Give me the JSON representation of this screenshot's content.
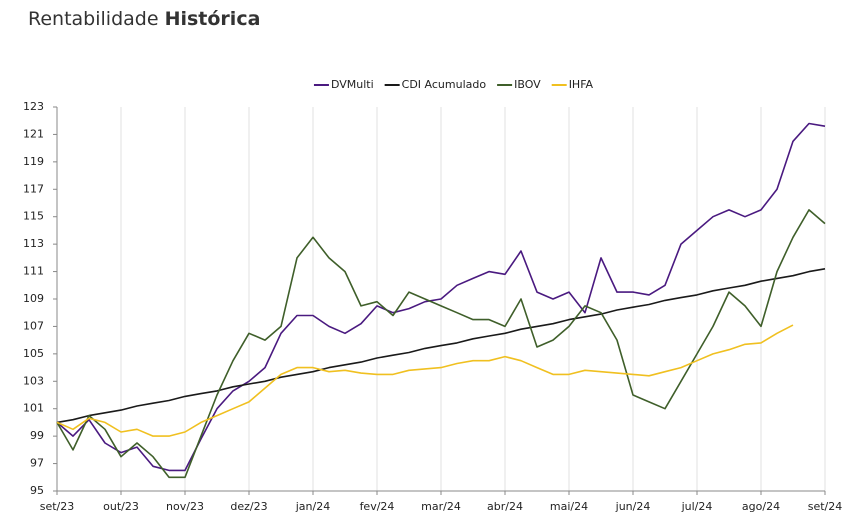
{
  "chart_data": {
    "type": "line",
    "title": "Rentabilidade",
    "title_emphasis": "Histórica",
    "categories": [
      "set/23",
      null,
      null,
      null,
      "out/23",
      null,
      null,
      null,
      "nov/23",
      null,
      null,
      null,
      "dez/23",
      null,
      null,
      null,
      "jan/24",
      null,
      null,
      null,
      "fev/24",
      null,
      null,
      null,
      "mar/24",
      null,
      null,
      null,
      "abr/24",
      null,
      null,
      null,
      "mai/24",
      null,
      null,
      null,
      "jun/24",
      null,
      null,
      null,
      "jul/24",
      null,
      null,
      null,
      "ago/24",
      null,
      null,
      null,
      "set/24"
    ],
    "series": [
      {
        "name": "DVMulti",
        "color": "#4a1a80",
        "values": [
          100,
          99.0,
          100.2,
          98.5,
          97.8,
          98.2,
          96.8,
          96.5,
          96.5,
          98.8,
          101.0,
          102.3,
          103.0,
          104.0,
          106.5,
          107.8,
          107.8,
          107.0,
          106.5,
          107.2,
          108.5,
          108.0,
          108.3,
          108.8,
          109.0,
          110.0,
          110.5,
          111.0,
          110.8,
          112.5,
          109.5,
          109.0,
          109.5,
          108.0,
          112.0,
          109.5,
          109.5,
          109.3,
          110.0,
          113.0,
          114.0,
          115.0,
          115.5,
          115.0,
          115.5,
          117.0,
          120.5,
          121.8,
          121.6
        ]
      },
      {
        "name": "CDI Acumulado",
        "color": "#1a1a1a",
        "values": [
          100,
          100.2,
          100.5,
          100.7,
          100.9,
          101.2,
          101.4,
          101.6,
          101.9,
          102.1,
          102.3,
          102.6,
          102.8,
          103.0,
          103.3,
          103.5,
          103.7,
          104.0,
          104.2,
          104.4,
          104.7,
          104.9,
          105.1,
          105.4,
          105.6,
          105.8,
          106.1,
          106.3,
          106.5,
          106.8,
          107.0,
          107.2,
          107.5,
          107.7,
          107.9,
          108.2,
          108.4,
          108.6,
          108.9,
          109.1,
          109.3,
          109.6,
          109.8,
          110.0,
          110.3,
          110.5,
          110.7,
          111.0,
          111.2
        ]
      },
      {
        "name": "IBOV",
        "color": "#3f5f2a",
        "values": [
          100,
          98.0,
          100.5,
          99.5,
          97.5,
          98.5,
          97.5,
          96.0,
          96.0,
          99.0,
          102.0,
          104.5,
          106.5,
          106.0,
          107.0,
          112.0,
          113.5,
          112.0,
          111.0,
          108.5,
          108.8,
          107.8,
          109.5,
          109.0,
          108.5,
          108.0,
          107.5,
          107.5,
          107.0,
          109.0,
          105.5,
          106.0,
          107.0,
          108.5,
          108.0,
          106.0,
          102.0,
          101.5,
          101.0,
          103.0,
          105.0,
          107.0,
          109.5,
          108.5,
          107.0,
          111.0,
          113.5,
          115.5,
          114.5
        ]
      },
      {
        "name": "IHFA",
        "color": "#f0c020",
        "values": [
          100,
          99.5,
          100.3,
          100.0,
          99.3,
          99.5,
          99.0,
          99.0,
          99.3,
          100.0,
          100.5,
          101.0,
          101.5,
          102.5,
          103.5,
          104.0,
          104.0,
          103.7,
          103.8,
          103.6,
          103.5,
          103.5,
          103.8,
          103.9,
          104.0,
          104.3,
          104.5,
          104.5,
          104.8,
          104.5,
          104.0,
          103.5,
          103.5,
          103.8,
          103.7,
          103.6,
          103.5,
          103.4,
          103.7,
          104.0,
          104.5,
          105.0,
          105.3,
          105.7,
          105.8,
          106.5,
          107.1,
          null,
          null
        ]
      }
    ],
    "ylim": [
      95,
      123
    ],
    "yticks": [
      95,
      97,
      99,
      101,
      103,
      105,
      107,
      109,
      111,
      113,
      115,
      117,
      119,
      121,
      123
    ],
    "grid": true,
    "legend": "top"
  }
}
